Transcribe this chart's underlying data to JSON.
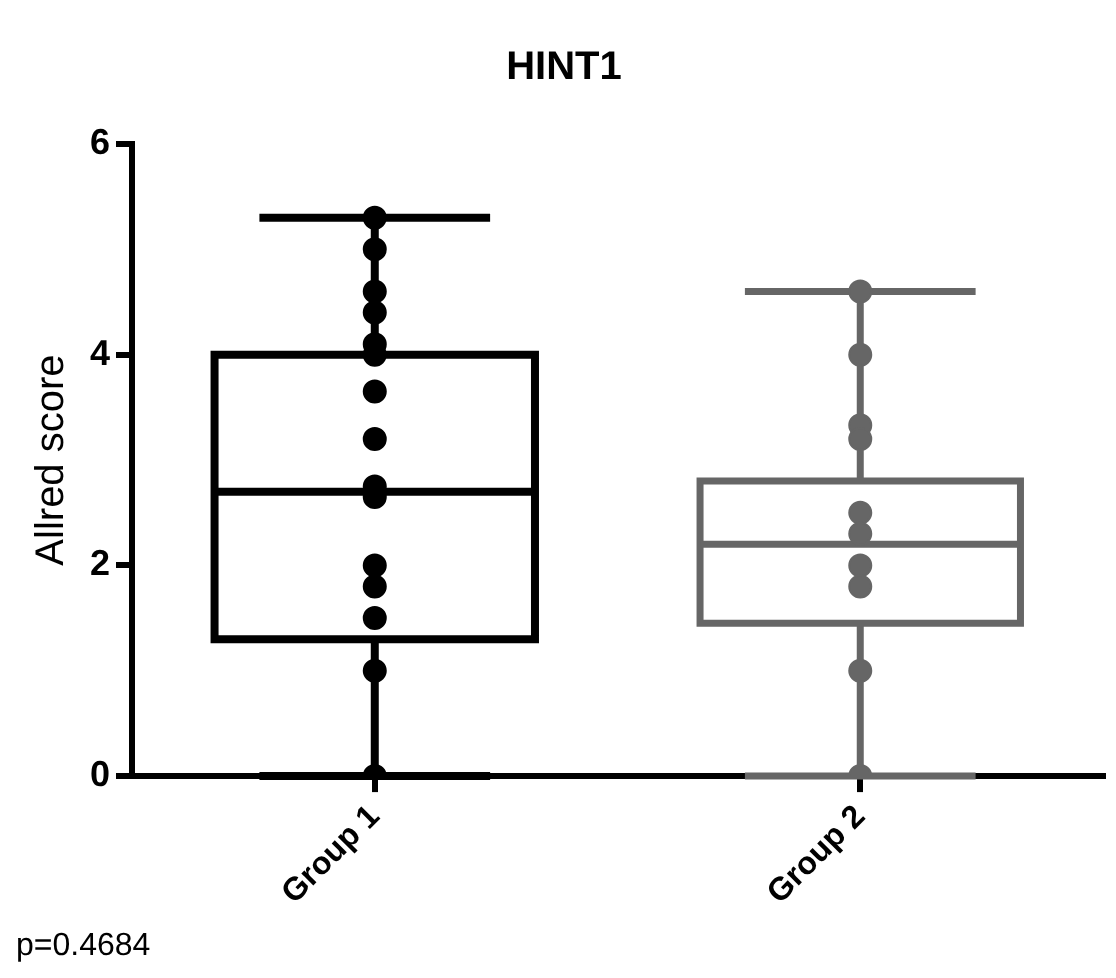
{
  "chart_data": {
    "type": "box",
    "title": "HINT1",
    "ylabel": "Allred score",
    "categories": [
      "Group 1",
      "Group 2"
    ],
    "boxes": [
      {
        "low": 0,
        "q1": 1.3,
        "median": 2.7,
        "q3": 4.0,
        "high": 5.3
      },
      {
        "low": 0,
        "q1": 1.45,
        "median": 2.2,
        "q3": 2.8,
        "high": 4.6
      }
    ],
    "colors": [
      "#000000",
      "#666666"
    ],
    "series": [
      {
        "type": "scatter",
        "color": "#000000",
        "x": [
          "Group 1",
          "Group 1",
          "Group 1",
          "Group 1",
          "Group 1",
          "Group 1",
          "Group 1",
          "Group 1",
          "Group 1",
          "Group 1",
          "Group 1",
          "Group 1",
          "Group 1",
          "Group 1",
          "Group 1"
        ],
        "values": [
          5.3,
          5.0,
          4.6,
          4.4,
          4.1,
          4.0,
          3.65,
          3.2,
          2.75,
          2.65,
          2.0,
          1.8,
          1.5,
          1.0,
          0
        ]
      },
      {
        "type": "scatter",
        "color": "#666666",
        "x": [
          "Group 2",
          "Group 2",
          "Group 2",
          "Group 2",
          "Group 2",
          "Group 2",
          "Group 2",
          "Group 2",
          "Group 2",
          "Group 2"
        ],
        "values": [
          4.6,
          4.0,
          3.33,
          3.2,
          2.5,
          2.3,
          2.0,
          1.8,
          1.0,
          0
        ]
      }
    ],
    "ylim": [
      0,
      6
    ],
    "yticks": [
      0,
      2,
      4,
      6
    ],
    "grid": false,
    "legend": false,
    "marker": "circle",
    "annotations": [
      "p=0.4684"
    ]
  }
}
